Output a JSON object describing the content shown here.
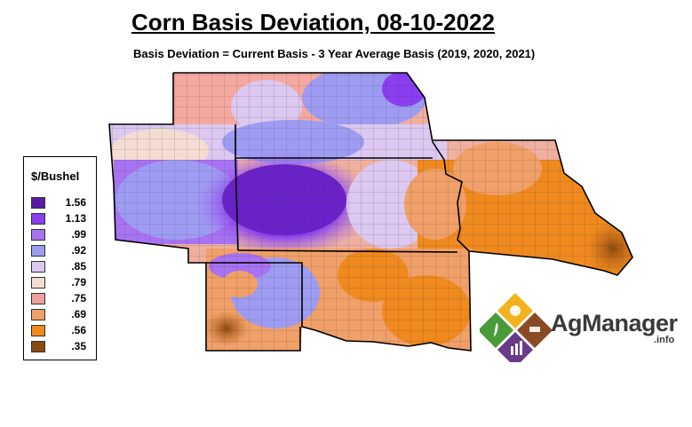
{
  "title": "Corn Basis Deviation, 08-10-2022",
  "subtitle": "Basis Deviation = Current Basis - 3 Year Average Basis (2019, 2020, 2021)",
  "legend": {
    "title": "$/Bushel",
    "entries": [
      {
        "label": "1.56",
        "color": "#5a1aa8"
      },
      {
        "label": "1.13",
        "color": "#8a3ef0"
      },
      {
        "label": ".99",
        "color": "#a873f2"
      },
      {
        "label": ".92",
        "color": "#9e9cf2"
      },
      {
        "label": ".85",
        "color": "#dcc8f0"
      },
      {
        "label": ".79",
        "color": "#f4dcd2"
      },
      {
        "label": ".75",
        "color": "#f0a09a"
      },
      {
        "label": ".69",
        "color": "#f0a068"
      },
      {
        "label": ".56",
        "color": "#f08a1e"
      },
      {
        "label": ".35",
        "color": "#8a4a10"
      }
    ]
  },
  "logo": {
    "name": "AgManager",
    "suffix": ".info"
  }
}
